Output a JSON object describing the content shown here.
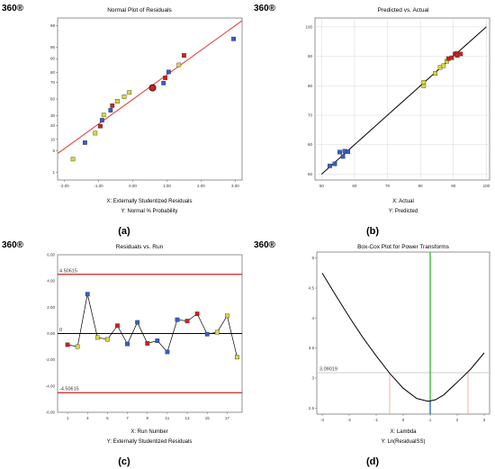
{
  "panels": [
    {
      "logo": "360®",
      "letter": "(a)",
      "title": "Normal Plot of Residuals",
      "xlabel": "X: Externally Studentized Residuals",
      "ylabel": "Y: Normal % Probability"
    },
    {
      "logo": "360®",
      "letter": "(b)",
      "title": "Predicted vs. Actual",
      "xlabel": "X: Actual",
      "ylabel": "Y: Predicted"
    },
    {
      "logo": "360®",
      "letter": "(c)",
      "title": "Residuals vs. Run",
      "xlabel": "X: Run Number",
      "ylabel": "Y: Externally Studentized Residuals",
      "upper_limit_label": "4.50615",
      "lower_limit_label": "-4.50615",
      "zero_label": "0"
    },
    {
      "logo": "360®",
      "letter": "(d)",
      "title": "Box-Cox Plot for Power Transforms",
      "xlabel": "X: Lambda",
      "ylabel": "Y: Ln(ResidualSS)",
      "ci_label": "3.09019"
    }
  ],
  "colors": {
    "low": "#2f5fd0",
    "mid": "#d8d840",
    "high": "#d02020",
    "ref_line": "#e84040",
    "fit_line": "#000000",
    "green": "#20b020",
    "ci_line": "#f0a090",
    "grid": "#d8d8d8"
  },
  "chart_data": [
    {
      "type": "scatter",
      "title": "Normal Plot of Residuals",
      "xlabel": "X: Externally Studentized Residuals",
      "ylabel": "Y: Normal % Probability",
      "xlim": [
        -2.2,
        3.2
      ],
      "x_ticks": [
        "-2.00",
        "-1.00",
        "0.00",
        "1.00",
        "2.00",
        "3.00"
      ],
      "y_ticks": [
        "1",
        "5",
        "10",
        "20",
        "30",
        "50",
        "70",
        "80",
        "90",
        "95",
        "99"
      ],
      "ylim": [
        0.5,
        99.5
      ],
      "reference_line": {
        "color": "#e84040"
      },
      "points": [
        {
          "x": -1.75,
          "y": 2.8,
          "c": "mid"
        },
        {
          "x": -1.4,
          "y": 8.3,
          "c": "low"
        },
        {
          "x": -1.1,
          "y": 13.9,
          "c": "mid"
        },
        {
          "x": -0.95,
          "y": 19.4,
          "c": "high"
        },
        {
          "x": -0.9,
          "y": 25.0,
          "c": "low"
        },
        {
          "x": -0.85,
          "y": 30.6,
          "c": "mid"
        },
        {
          "x": -0.65,
          "y": 36.1,
          "c": "low"
        },
        {
          "x": -0.6,
          "y": 41.7,
          "c": "high"
        },
        {
          "x": -0.45,
          "y": 47.2,
          "c": "mid"
        },
        {
          "x": -0.25,
          "y": 52.8,
          "c": "mid"
        },
        {
          "x": -0.1,
          "y": 58.3,
          "c": "mid"
        },
        {
          "x": 0.58,
          "y": 63.9,
          "c": "high",
          "marker": "circle"
        },
        {
          "x": 0.9,
          "y": 69.4,
          "c": "low"
        },
        {
          "x": 0.95,
          "y": 75.0,
          "c": "high"
        },
        {
          "x": 1.05,
          "y": 80.6,
          "c": "low"
        },
        {
          "x": 1.35,
          "y": 86.1,
          "c": "mid"
        },
        {
          "x": 1.5,
          "y": 91.7,
          "c": "high"
        },
        {
          "x": 2.95,
          "y": 97.2,
          "c": "low"
        }
      ]
    },
    {
      "type": "scatter",
      "title": "Predicted vs. Actual",
      "xlabel": "X: Actual",
      "ylabel": "Y: Predicted",
      "xlim": [
        48,
        101
      ],
      "ylim": [
        48,
        103
      ],
      "x_ticks": [
        50,
        60,
        70,
        80,
        90,
        100
      ],
      "y_ticks": [
        50,
        60,
        70,
        80,
        90,
        100
      ],
      "grid": true,
      "fit_line": [
        [
          50,
          50
        ],
        [
          100,
          100
        ]
      ],
      "points": [
        {
          "x": 52.5,
          "y": 52.8,
          "c": "low"
        },
        {
          "x": 54.0,
          "y": 53.5,
          "c": "low"
        },
        {
          "x": 55.5,
          "y": 57.5,
          "c": "low"
        },
        {
          "x": 56.5,
          "y": 56.0,
          "c": "low"
        },
        {
          "x": 57.0,
          "y": 57.8,
          "c": "low"
        },
        {
          "x": 58.0,
          "y": 57.6,
          "c": "low"
        },
        {
          "x": 81.0,
          "y": 80.0,
          "c": "mid"
        },
        {
          "x": 81.0,
          "y": 81.2,
          "c": "mid"
        },
        {
          "x": 84.5,
          "y": 84.2,
          "c": "mid"
        },
        {
          "x": 86.0,
          "y": 86.2,
          "c": "mid"
        },
        {
          "x": 87.0,
          "y": 86.8,
          "c": "mid"
        },
        {
          "x": 88.0,
          "y": 88.3,
          "c": "mid"
        },
        {
          "x": 88.5,
          "y": 89.2,
          "c": "high"
        },
        {
          "x": 89.5,
          "y": 89.5,
          "c": "high"
        },
        {
          "x": 90.5,
          "y": 90.8,
          "c": "high"
        },
        {
          "x": 91.0,
          "y": 91.0,
          "c": "high"
        },
        {
          "x": 91.2,
          "y": 90.3,
          "c": "high"
        },
        {
          "x": 92.2,
          "y": 90.8,
          "c": "high"
        }
      ]
    },
    {
      "type": "line",
      "title": "Residuals vs. Run",
      "xlabel": "X: Run Number",
      "ylabel": "Y: Externally Studentized Residuals",
      "xlim": [
        0,
        18.5
      ],
      "ylim": [
        -6,
        6
      ],
      "x_ticks": [
        1,
        3,
        5,
        7,
        9,
        11,
        13,
        15,
        17
      ],
      "y_ticks": [
        "6.00",
        "4.00",
        "2.00",
        "0.00",
        "-2.00",
        "-4.00",
        "-6.00"
      ],
      "limits": [
        4.50615,
        -4.50615
      ],
      "points": [
        {
          "x": 1,
          "y": -0.85,
          "c": "high"
        },
        {
          "x": 2,
          "y": -1.0,
          "c": "mid"
        },
        {
          "x": 3,
          "y": 3.0,
          "c": "low"
        },
        {
          "x": 4,
          "y": -0.3,
          "c": "mid"
        },
        {
          "x": 5,
          "y": -0.45,
          "c": "mid"
        },
        {
          "x": 6,
          "y": 0.6,
          "c": "high"
        },
        {
          "x": 7,
          "y": -0.8,
          "c": "low"
        },
        {
          "x": 8,
          "y": 0.85,
          "c": "low"
        },
        {
          "x": 9,
          "y": -0.75,
          "c": "high"
        },
        {
          "x": 10,
          "y": -0.55,
          "c": "low"
        },
        {
          "x": 11,
          "y": -1.4,
          "c": "low"
        },
        {
          "x": 12,
          "y": 1.05,
          "c": "low"
        },
        {
          "x": 13,
          "y": 0.95,
          "c": "high"
        },
        {
          "x": 14,
          "y": 1.5,
          "c": "high"
        },
        {
          "x": 15,
          "y": -0.05,
          "c": "low"
        },
        {
          "x": 16,
          "y": 0.1,
          "c": "mid"
        },
        {
          "x": 17,
          "y": 1.35,
          "c": "mid"
        },
        {
          "x": 18,
          "y": -1.8,
          "c": "mid"
        }
      ]
    },
    {
      "type": "line",
      "title": "Box-Cox Plot for Power Transforms",
      "xlabel": "X: Lambda",
      "ylabel": "Y: Ln(ResidualSS)",
      "xlim": [
        -3.2,
        3.2
      ],
      "ylim": [
        2.4,
        5.1
      ],
      "x_ticks": [
        -3,
        -2,
        -1,
        0,
        1,
        2,
        3
      ],
      "y_ticks": [
        "5",
        "4.5",
        "4",
        "3.5",
        "3",
        "2.5"
      ],
      "ci_value": 3.09019,
      "current_lambda": 1,
      "best_lambda": 1.0,
      "ci_lambdas": [
        -0.5,
        2.4
      ],
      "curve": {
        "x": [
          -3,
          -2.5,
          -2,
          -1.5,
          -1,
          -0.5,
          0,
          0.5,
          0.9,
          1.0,
          1.2,
          1.5,
          2,
          2.5,
          3
        ],
        "y": [
          4.75,
          4.38,
          4.02,
          3.68,
          3.37,
          3.08,
          2.83,
          2.66,
          2.615,
          2.62,
          2.64,
          2.72,
          2.93,
          3.15,
          3.42
        ]
      }
    }
  ]
}
